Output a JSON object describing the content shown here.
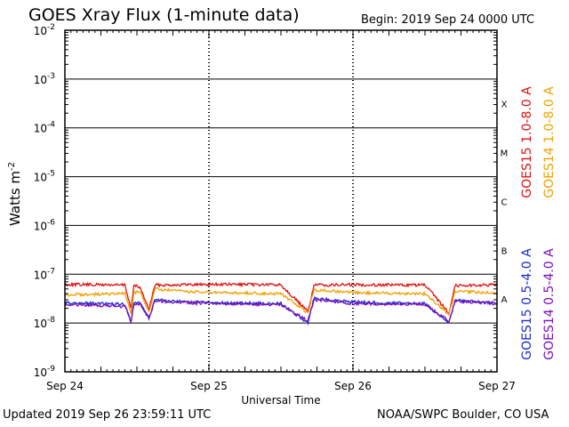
{
  "title": "GOES Xray Flux (1-minute data)",
  "begin_label": "Begin:  2019 Sep 24 0000 UTC",
  "updated_label": "Updated 2019 Sep 26 23:59:11 UTC",
  "credit": "NOAA/SWPC Boulder, CO USA",
  "colors": {
    "goes15_long": "#e01010",
    "goes14_long": "#f0a000",
    "goes15_short": "#1a2ad0",
    "goes14_short": "#7a10b8",
    "axis": "#000000"
  },
  "chart_data": {
    "type": "line",
    "title": "GOES Xray Flux (1-minute data)",
    "xlabel": "Universal Time",
    "ylabel": "Watts m",
    "ylabel_superscript": "-2",
    "y_scale": "log",
    "ylim": [
      1e-09,
      0.01
    ],
    "xlim": [
      "2019-09-24 00:00",
      "2019-09-27 00:00"
    ],
    "x_ticks": [
      "Sep 24",
      "Sep 25",
      "Sep 26",
      "Sep 27"
    ],
    "y_ticks": [
      {
        "base": "10",
        "exp": "-9"
      },
      {
        "base": "10",
        "exp": "-8"
      },
      {
        "base": "10",
        "exp": "-7"
      },
      {
        "base": "10",
        "exp": "-6"
      },
      {
        "base": "10",
        "exp": "-5"
      },
      {
        "base": "10",
        "exp": "-4"
      },
      {
        "base": "10",
        "exp": "-3"
      },
      {
        "base": "10",
        "exp": "-2"
      }
    ],
    "flare_classes": [
      "A",
      "B",
      "C",
      "M",
      "X"
    ],
    "grid": true,
    "series": [
      {
        "name": "GOES15 1.0-8.0 A",
        "color": "#e01010",
        "points": [
          [
            "2019-09-24 00:00",
            6.2e-08
          ],
          [
            "2019-09-24 06:00",
            6.1e-08
          ],
          [
            "2019-09-24 10:00",
            6e-08
          ],
          [
            "2019-09-24 11:00",
            2e-08
          ],
          [
            "2019-09-24 11:30",
            5.8e-08
          ],
          [
            "2019-09-24 12:30",
            5.4e-08
          ],
          [
            "2019-09-24 14:00",
            1.9e-08
          ],
          [
            "2019-09-24 15:00",
            6e-08
          ],
          [
            "2019-09-25 00:00",
            6.2e-08
          ],
          [
            "2019-09-25 12:00",
            6.1e-08
          ],
          [
            "2019-09-25 16:30",
            1.7e-08
          ],
          [
            "2019-09-25 17:30",
            6e-08
          ],
          [
            "2019-09-26 00:00",
            6.1e-08
          ],
          [
            "2019-09-26 12:00",
            6e-08
          ],
          [
            "2019-09-26 16:00",
            1.6e-08
          ],
          [
            "2019-09-26 17:00",
            5.9e-08
          ],
          [
            "2019-09-27 00:00",
            6e-08
          ]
        ]
      },
      {
        "name": "GOES14 1.0-8.0 A",
        "color": "#f0a000",
        "points": [
          [
            "2019-09-24 00:00",
            3.8e-08
          ],
          [
            "2019-09-24 06:00",
            3.9e-08
          ],
          [
            "2019-09-24 10:00",
            4e-08
          ],
          [
            "2019-09-24 11:00",
            1.6e-08
          ],
          [
            "2019-09-24 11:30",
            4.2e-08
          ],
          [
            "2019-09-24 12:30",
            4.4e-08
          ],
          [
            "2019-09-24 14:00",
            1.7e-08
          ],
          [
            "2019-09-24 15:00",
            5e-08
          ],
          [
            "2019-09-24 18:00",
            4.6e-08
          ],
          [
            "2019-09-25 00:00",
            4.2e-08
          ],
          [
            "2019-09-25 12:00",
            4e-08
          ],
          [
            "2019-09-25 16:30",
            1.6e-08
          ],
          [
            "2019-09-25 17:30",
            4.8e-08
          ],
          [
            "2019-09-26 00:00",
            4.2e-08
          ],
          [
            "2019-09-26 12:00",
            4e-08
          ],
          [
            "2019-09-26 16:00",
            1.5e-08
          ],
          [
            "2019-09-26 17:00",
            4.4e-08
          ],
          [
            "2019-09-27 00:00",
            4.2e-08
          ]
        ]
      },
      {
        "name": "GOES15 0.5-4.0 A",
        "color": "#1a2ad0",
        "points": [
          [
            "2019-09-24 00:00",
            2.6e-08
          ],
          [
            "2019-09-24 06:00",
            2.5e-08
          ],
          [
            "2019-09-24 10:00",
            2.4e-08
          ],
          [
            "2019-09-24 11:00",
            1e-08
          ],
          [
            "2019-09-24 11:30",
            2.6e-08
          ],
          [
            "2019-09-24 12:30",
            2.7e-08
          ],
          [
            "2019-09-24 14:00",
            1.2e-08
          ],
          [
            "2019-09-24 15:00",
            3e-08
          ],
          [
            "2019-09-24 18:00",
            2.8e-08
          ],
          [
            "2019-09-25 00:00",
            2.6e-08
          ],
          [
            "2019-09-25 12:00",
            2.5e-08
          ],
          [
            "2019-09-25 16:30",
            1e-08
          ],
          [
            "2019-09-25 17:30",
            3.2e-08
          ],
          [
            "2019-09-26 00:00",
            2.7e-08
          ],
          [
            "2019-09-26 12:00",
            2.5e-08
          ],
          [
            "2019-09-26 16:00",
            1e-08
          ],
          [
            "2019-09-26 17:00",
            2.9e-08
          ],
          [
            "2019-09-27 00:00",
            2.6e-08
          ]
        ]
      },
      {
        "name": "GOES14 0.5-4.0 A",
        "color": "#7a10b8",
        "points": [
          [
            "2019-09-24 00:00",
            2.4e-08
          ],
          [
            "2019-09-24 06:00",
            2.3e-08
          ],
          [
            "2019-09-24 10:00",
            2.2e-08
          ],
          [
            "2019-09-24 11:00",
            1.1e-08
          ],
          [
            "2019-09-24 11:30",
            2.4e-08
          ],
          [
            "2019-09-24 12:30",
            2.5e-08
          ],
          [
            "2019-09-24 14:00",
            1.3e-08
          ],
          [
            "2019-09-24 15:00",
            2.8e-08
          ],
          [
            "2019-09-25 00:00",
            2.5e-08
          ],
          [
            "2019-09-25 12:00",
            2.4e-08
          ],
          [
            "2019-09-25 16:30",
            1.1e-08
          ],
          [
            "2019-09-25 17:30",
            3e-08
          ],
          [
            "2019-09-26 00:00",
            2.5e-08
          ],
          [
            "2019-09-26 12:00",
            2.4e-08
          ],
          [
            "2019-09-26 16:00",
            1.1e-08
          ],
          [
            "2019-09-26 17:00",
            2.8e-08
          ],
          [
            "2019-09-27 00:00",
            2.5e-08
          ]
        ]
      }
    ]
  }
}
